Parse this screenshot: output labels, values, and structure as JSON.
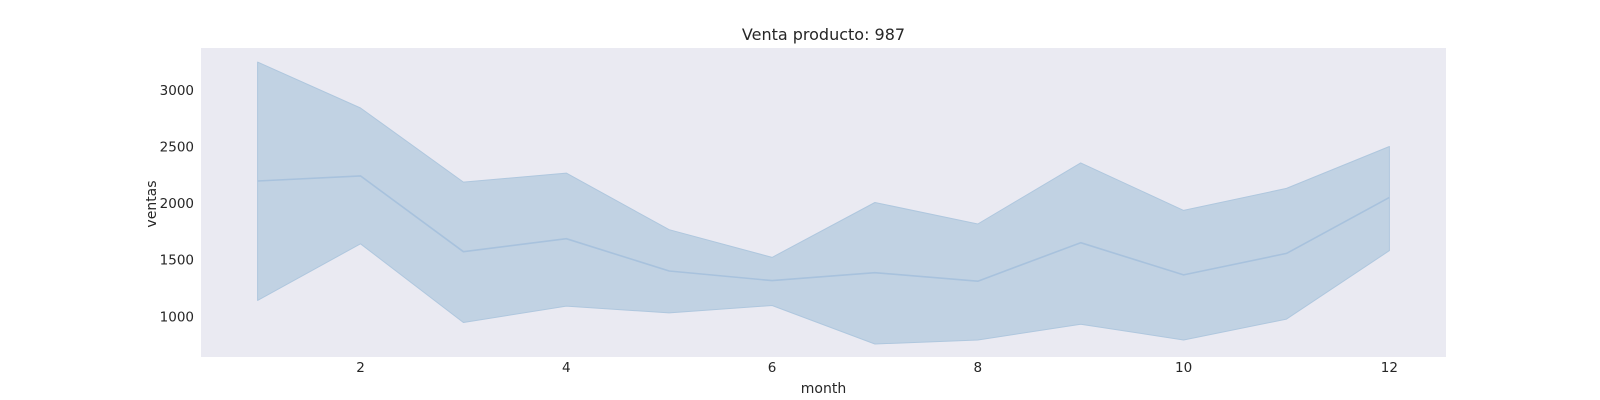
{
  "chart_data": {
    "type": "line",
    "title": "Venta producto: 987",
    "xlabel": "month",
    "ylabel": "ventas",
    "x": [
      1,
      2,
      3,
      4,
      5,
      6,
      7,
      8,
      9,
      10,
      11,
      12
    ],
    "series": [
      {
        "values": [
          2195,
          2240,
          1570,
          1685,
          1400,
          1315,
          1385,
          1310,
          1650,
          1365,
          1555,
          2050
        ],
        "band_upper": [
          3245,
          2840,
          2185,
          2265,
          1765,
          1520,
          2005,
          1815,
          2355,
          1935,
          2130,
          2500
        ],
        "band_lower": [
          1140,
          1640,
          945,
          1090,
          1030,
          1095,
          755,
          790,
          930,
          790,
          975,
          1580
        ]
      }
    ],
    "xticks": [
      2,
      4,
      6,
      8,
      10,
      12
    ],
    "yticks": [
      1000,
      1500,
      2000,
      2500,
      3000
    ],
    "xlim": [
      0.45,
      12.55
    ],
    "ylim": [
      640,
      3370
    ],
    "grid": false,
    "colors": {
      "line": "#a8c2dd",
      "band": "#c1d2e3",
      "band_edge": "#afc7de",
      "plot_bg": "#eaeaf2"
    }
  }
}
